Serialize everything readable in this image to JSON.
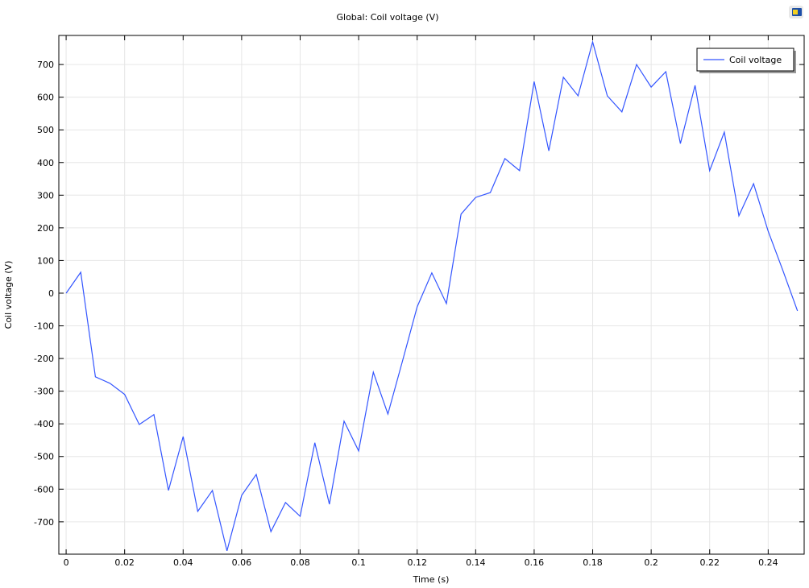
{
  "chart_data": {
    "type": "line",
    "title": "Global: Coil voltage (V)",
    "xlabel": "Time (s)",
    "ylabel": "Coil voltage (V)",
    "xlim": [
      -0.0025,
      0.2523
    ],
    "ylim": [
      -799,
      789
    ],
    "grid": true,
    "legend_placement": "top-right",
    "xticks": [
      0,
      0.02,
      0.04,
      0.06,
      0.08,
      0.1,
      0.12,
      0.14,
      0.16,
      0.18,
      0.2,
      0.22,
      0.24
    ],
    "xtick_labels": [
      "0",
      "0.02",
      "0.04",
      "0.06",
      "0.08",
      "0.1",
      "0.12",
      "0.14",
      "0.16",
      "0.18",
      "0.2",
      "0.22",
      "0.24"
    ],
    "yticks": [
      -700,
      -600,
      -500,
      -400,
      -300,
      -200,
      -100,
      0,
      100,
      200,
      300,
      400,
      500,
      600,
      700
    ],
    "ytick_labels": [
      "-700",
      "-600",
      "-500",
      "-400",
      "-300",
      "-200",
      "-100",
      "0",
      "100",
      "200",
      "300",
      "400",
      "500",
      "600",
      "700"
    ],
    "series": [
      {
        "name": "Coil voltage",
        "color": "#3355ff",
        "x": [
          0,
          0.005,
          0.01,
          0.015,
          0.02,
          0.025,
          0.03,
          0.035,
          0.04,
          0.045,
          0.05,
          0.055,
          0.06,
          0.065,
          0.07,
          0.075,
          0.08,
          0.085,
          0.09,
          0.095,
          0.1,
          0.105,
          0.11,
          0.115,
          0.12,
          0.125,
          0.13,
          0.135,
          0.14,
          0.145,
          0.15,
          0.155,
          0.16,
          0.165,
          0.17,
          0.175,
          0.18,
          0.185,
          0.19,
          0.195,
          0.2,
          0.205,
          0.21,
          0.215,
          0.22,
          0.225,
          0.23,
          0.235,
          0.24,
          0.245,
          0.25
        ],
        "y": [
          0,
          64,
          -256,
          -276,
          -310,
          -402,
          -372,
          -604,
          -439,
          -668,
          -604,
          -789,
          -619,
          -555,
          -730,
          -641,
          -683,
          -458,
          -646,
          -392,
          -483,
          -242,
          -370,
          -207,
          -42,
          62,
          -32,
          242,
          293,
          308,
          412,
          375,
          648,
          436,
          661,
          604,
          769,
          604,
          555,
          700,
          631,
          678,
          458,
          636,
          375,
          493,
          237,
          335,
          190,
          70,
          -54
        ]
      }
    ]
  },
  "toolbar": {
    "icon": "comsol-graphics-icon"
  }
}
